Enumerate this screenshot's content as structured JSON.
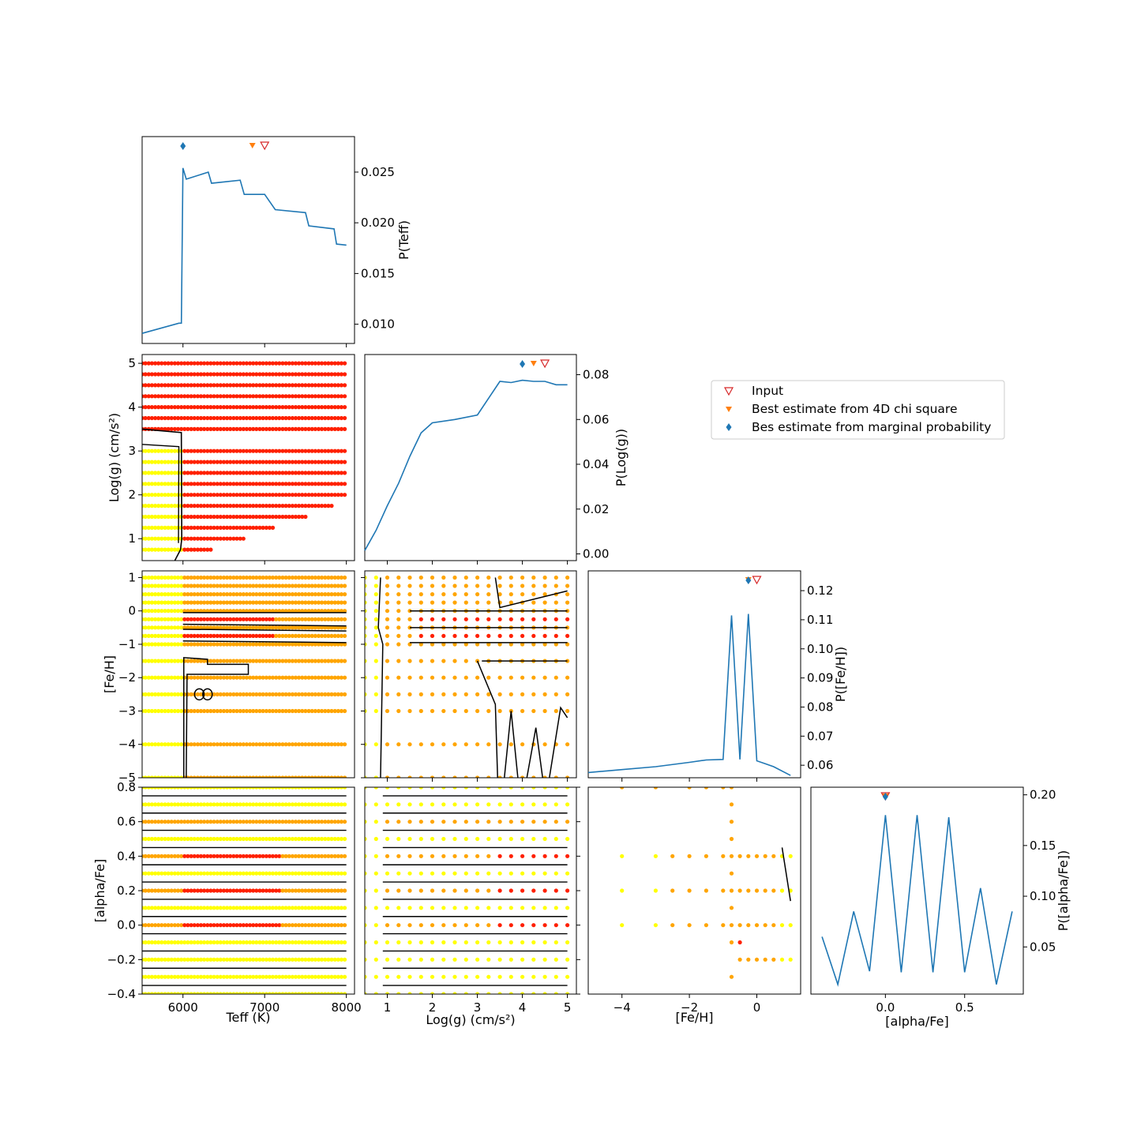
{
  "colors": {
    "line": "#1f77b4",
    "input_marker": "#d62728",
    "chi_marker": "#ff7f0e",
    "marg_marker": "#1f77b4",
    "contour": "#000000",
    "dot_low": "#ffff00",
    "dot_mid": "#ffa500",
    "dot_high": "#ff2000"
  },
  "legend": {
    "placement": "middle-right",
    "items": [
      {
        "label": "Input",
        "marker": "open-triangle-down",
        "color": "#d62728"
      },
      {
        "label": "Best estimate from 4D chi square",
        "marker": "triangle-down",
        "color": "#ff7f0e"
      },
      {
        "label": "Bes estimate from marginal probability",
        "marker": "diamond",
        "color": "#1f77b4"
      }
    ]
  },
  "chart_data": [
    {
      "id": "teff_marginal",
      "type": "line",
      "xlim": [
        5500,
        8100
      ],
      "ylim": [
        0.0081,
        0.0285
      ],
      "xticks": [
        6000,
        7000,
        8000
      ],
      "yticks": [
        0.01,
        0.015,
        0.02,
        0.025
      ],
      "ytick_labels": [
        "0.010",
        "0.015",
        "0.020",
        "0.025"
      ],
      "ylabel": "P(Teff)",
      "yaxis_side": "right",
      "x": [
        5500,
        5950,
        5980,
        6000,
        6040,
        6310,
        6350,
        6700,
        6750,
        7000,
        7130,
        7500,
        7540,
        7850,
        7880,
        8000
      ],
      "y": [
        0.0091,
        0.0101,
        0.0101,
        0.0254,
        0.0243,
        0.025,
        0.0239,
        0.0242,
        0.0228,
        0.0228,
        0.0213,
        0.021,
        0.0197,
        0.0194,
        0.0179,
        0.0178
      ],
      "markers": {
        "input": 7000,
        "chi": 6850,
        "marginal": 6000
      }
    },
    {
      "id": "logg_marginal",
      "type": "line",
      "xlim": [
        0.5,
        5.2
      ],
      "ylim": [
        -0.003,
        0.089
      ],
      "xticks": [
        1,
        2,
        3,
        4,
        5
      ],
      "yticks": [
        0.0,
        0.02,
        0.04,
        0.06,
        0.08
      ],
      "ytick_labels": [
        "0.00",
        "0.02",
        "0.04",
        "0.06",
        "0.08"
      ],
      "ylabel": "P(Log(g))",
      "yaxis_side": "right",
      "x": [
        0.5,
        0.75,
        1.0,
        1.25,
        1.5,
        1.75,
        2.0,
        2.5,
        3.0,
        3.5,
        3.75,
        4.0,
        4.25,
        4.5,
        4.75,
        5.0
      ],
      "y": [
        0.0015,
        0.0105,
        0.0215,
        0.0315,
        0.0435,
        0.054,
        0.0585,
        0.06,
        0.062,
        0.077,
        0.0765,
        0.0775,
        0.077,
        0.077,
        0.0755,
        0.0755
      ],
      "markers": {
        "input": 4.5,
        "chi": 4.25,
        "marginal": 4.0
      }
    },
    {
      "id": "feh_marginal",
      "type": "line",
      "xlim": [
        -5.0,
        1.3
      ],
      "ylim": [
        0.0557,
        0.1268
      ],
      "xticks": [
        -4,
        -2,
        0
      ],
      "yticks": [
        0.06,
        0.07,
        0.08,
        0.09,
        0.1,
        0.11,
        0.12
      ],
      "ytick_labels": [
        "0.06",
        "0.07",
        "0.08",
        "0.09",
        "0.10",
        "0.11",
        "0.12"
      ],
      "ylabel": "P([Fe/H])",
      "yaxis_side": "right",
      "x": [
        -5.0,
        -4.0,
        -3.0,
        -2.0,
        -1.5,
        -1.0,
        -0.75,
        -0.5,
        -0.25,
        0.0,
        0.25,
        0.5,
        1.0
      ],
      "y": [
        0.0575,
        0.0585,
        0.0595,
        0.061,
        0.0618,
        0.062,
        0.1115,
        0.062,
        0.112,
        0.0615,
        0.0605,
        0.0595,
        0.0565
      ],
      "markers": {
        "input": 0.0,
        "chi": -0.25,
        "marginal": -0.25
      }
    },
    {
      "id": "alpha_marginal",
      "type": "line",
      "xlim": [
        -0.47,
        0.87
      ],
      "ylim": [
        0.0035,
        0.2075
      ],
      "xticks": [
        0.0,
        0.5
      ],
      "xtick_labels": [
        "0.0",
        "0.5"
      ],
      "yticks": [
        0.05,
        0.1,
        0.15,
        0.2
      ],
      "ytick_labels": [
        "0.05",
        "0.10",
        "0.15",
        "0.20"
      ],
      "xlabel": "[alpha/Fe]",
      "ylabel": "P([alpha/Fe])",
      "yaxis_side": "right",
      "x": [
        -0.4,
        -0.3,
        -0.2,
        -0.1,
        0.0,
        0.1,
        0.2,
        0.3,
        0.4,
        0.5,
        0.6,
        0.7,
        0.8
      ],
      "y": [
        0.06,
        0.013,
        0.085,
        0.026,
        0.18,
        0.025,
        0.18,
        0.025,
        0.178,
        0.025,
        0.108,
        0.013,
        0.085
      ],
      "markers": {
        "input": 0.0,
        "chi": 0.0,
        "marginal": 0.0
      }
    },
    {
      "id": "logg_vs_teff",
      "type": "scatter",
      "xlim": [
        5500,
        8100
      ],
      "ylim": [
        0.5,
        5.2
      ],
      "ylabel": "Log(g) (cm/s²)",
      "xticks": [
        6000,
        7000,
        8000
      ],
      "yticks": [
        1,
        2,
        3,
        4,
        5
      ],
      "grid_x": {
        "from": 5500,
        "to": 8000,
        "step": 40
      },
      "rows": [
        {
          "y": 5.0,
          "xmax": 8000,
          "split": 5500
        },
        {
          "y": 4.75,
          "xmax": 8000,
          "split": 5500
        },
        {
          "y": 4.5,
          "xmax": 8000,
          "split": 5500
        },
        {
          "y": 4.25,
          "xmax": 8000,
          "split": 5500
        },
        {
          "y": 4.0,
          "xmax": 8000,
          "split": 5500
        },
        {
          "y": 3.75,
          "xmax": 8000,
          "split": 5500
        },
        {
          "y": 3.5,
          "xmax": 8000,
          "split": 5500
        },
        {
          "y": 3.0,
          "xmax": 8000,
          "split": 6000
        },
        {
          "y": 2.75,
          "xmax": 8000,
          "split": 6000
        },
        {
          "y": 2.5,
          "xmax": 8000,
          "split": 6000
        },
        {
          "y": 2.25,
          "xmax": 8000,
          "split": 6000
        },
        {
          "y": 2.0,
          "xmax": 8000,
          "split": 6000
        },
        {
          "y": 1.75,
          "xmax": 7850,
          "split": 6000
        },
        {
          "y": 1.5,
          "xmax": 7500,
          "split": 6000
        },
        {
          "y": 1.25,
          "xmax": 7100,
          "split": 6000
        },
        {
          "y": 1.0,
          "xmax": 6750,
          "split": 6000
        },
        {
          "y": 0.75,
          "xmax": 6350,
          "split": 6000
        }
      ]
    },
    {
      "id": "feh_vs_teff",
      "type": "scatter",
      "xlim": [
        5500,
        8100
      ],
      "ylim": [
        -5.0,
        1.2
      ],
      "ylabel": "[Fe/H]",
      "yticks": [
        -5,
        -4,
        -3,
        -2,
        -1,
        0,
        1
      ],
      "grid_x": {
        "from": 5500,
        "to": 8000,
        "step": 40
      },
      "rows_y": [
        1.0,
        0.75,
        0.5,
        0.25,
        0.0,
        -0.25,
        -0.5,
        -0.75,
        -1.0,
        -1.5,
        -2.0,
        -2.5,
        -3.0,
        -4.0,
        -5.0
      ],
      "red_rows_y": [
        -0.25,
        -0.75
      ]
    },
    {
      "id": "feh_vs_logg",
      "type": "scatter",
      "xlim": [
        0.5,
        5.2
      ],
      "ylim": [
        -5.0,
        1.2
      ],
      "x": [
        0.5,
        0.75,
        1.0,
        1.25,
        1.5,
        1.75,
        2.0,
        2.25,
        2.5,
        2.75,
        3.0,
        3.25,
        3.5,
        3.75,
        4.0,
        4.25,
        4.5,
        4.75,
        5.0
      ],
      "rows_y": [
        1.0,
        0.75,
        0.5,
        0.25,
        0.0,
        -0.25,
        -0.5,
        -0.75,
        -1.0,
        -1.5,
        -2.0,
        -2.5,
        -3.0,
        -4.0,
        -5.0
      ],
      "red_rows_y": [
        -0.25,
        -0.75
      ]
    },
    {
      "id": "alpha_vs_teff",
      "type": "scatter",
      "xlim": [
        5500,
        8100
      ],
      "ylim": [
        -0.4,
        0.8
      ],
      "xlabel": "Teff (K)",
      "ylabel": "[alpha/Fe]",
      "xticks": [
        6000,
        7000,
        8000
      ],
      "yticks": [
        -0.4,
        -0.2,
        0.0,
        0.2,
        0.4,
        0.6,
        0.8
      ],
      "ytick_labels": [
        "−0.4",
        "−0.2",
        "0.0",
        "0.2",
        "0.4",
        "0.6",
        "0.8"
      ],
      "grid_x": {
        "from": 5500,
        "to": 8000,
        "step": 40
      },
      "rows_y": [
        0.8,
        0.7,
        0.6,
        0.5,
        0.4,
        0.3,
        0.2,
        0.1,
        0.0,
        -0.1,
        -0.2,
        -0.3,
        -0.4
      ],
      "orange_rows_y": [
        0.6,
        0.4,
        0.2,
        0.0
      ],
      "red_rows_y": [
        0.4,
        0.2,
        0.0
      ]
    },
    {
      "id": "alpha_vs_logg",
      "type": "scatter",
      "xlim": [
        0.5,
        5.2
      ],
      "ylim": [
        -0.4,
        0.8
      ],
      "xlabel": "Log(g) (cm/s²)",
      "xticks": [
        1,
        2,
        3,
        4,
        5
      ],
      "x": [
        0.5,
        0.75,
        1.0,
        1.25,
        1.5,
        1.75,
        2.0,
        2.25,
        2.5,
        2.75,
        3.0,
        3.25,
        3.5,
        3.75,
        4.0,
        4.25,
        4.5,
        4.75,
        5.0
      ],
      "rows_y": [
        0.8,
        0.7,
        0.6,
        0.5,
        0.4,
        0.3,
        0.2,
        0.1,
        0.0,
        -0.1,
        -0.2,
        -0.3,
        -0.4
      ],
      "orange_rows_y": [
        0.6,
        0.4,
        0.2,
        0.0
      ],
      "red_rows_y": [
        0.4,
        0.2,
        0.0
      ]
    },
    {
      "id": "alpha_vs_feh",
      "type": "scatter",
      "xlim": [
        -5.0,
        1.3
      ],
      "ylim": [
        -0.4,
        0.8
      ],
      "xlabel": "[Fe/H]",
      "xticks": [
        -4,
        -2,
        0
      ],
      "x": [
        -4.0,
        -3.0,
        -2.5,
        -2.0,
        -1.5,
        -1.0,
        -0.75,
        -0.5,
        -0.25,
        0.0,
        0.25,
        0.5,
        0.75,
        1.0
      ],
      "rows_y": [
        0.4,
        0.2,
        0.0,
        -0.2
      ],
      "red_points": [
        [
          -0.5,
          -0.1
        ]
      ]
    }
  ]
}
